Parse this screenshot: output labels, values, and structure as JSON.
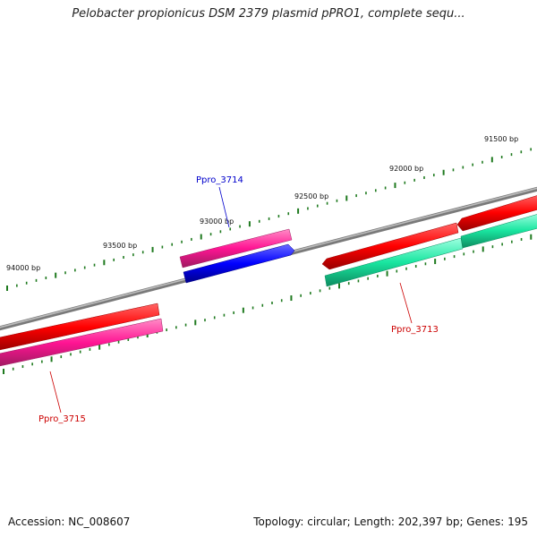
{
  "title": "Pelobacter propionicus DSM 2379 plasmid pPRO1, complete sequ...",
  "footer": {
    "accession_prefix": "Accession: ",
    "accession": "NC_008607",
    "topology": "circular",
    "length": "202,397 bp",
    "genes": "195"
  },
  "scale_labels": [
    "91500 bp",
    "92000 bp",
    "92500 bp",
    "93000 bp",
    "93500 bp",
    "94000 bp"
  ],
  "genes": [
    {
      "name": "Ppro_3713",
      "color": "#cc0000"
    },
    {
      "name": "Ppro_3714",
      "color": "#0000cc"
    },
    {
      "name": "Ppro_3715",
      "color": "#cc0000"
    }
  ],
  "colors": {
    "backbone": "#808080",
    "ticks": "#1f7a1f",
    "red": "#ff0000",
    "magenta": "#ff1493",
    "blue": "#0000ff",
    "green": "#19e6a0"
  }
}
